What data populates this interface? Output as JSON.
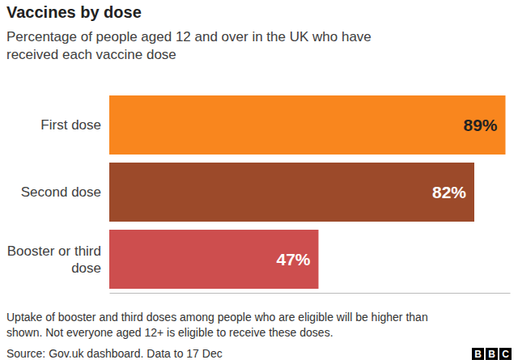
{
  "chart_data": {
    "type": "bar",
    "orientation": "horizontal",
    "title": "Vaccines by dose",
    "subtitle": [
      "Percentage of people aged 12 and over in the UK who have",
      "received each vaccine dose"
    ],
    "categories": [
      "First dose",
      "Second dose",
      "Booster or third dose"
    ],
    "values": [
      89,
      82,
      47
    ],
    "value_labels": [
      "89%",
      "82%",
      "47%"
    ],
    "colors": [
      "#f9861e",
      "#9c4a2a",
      "#cd4e4e"
    ],
    "data_labels": true,
    "xlim": [
      0,
      90
    ],
    "tick_labels": false,
    "grid": false,
    "notes": [
      "Uptake of booster and third doses among people who are eligible will be higher than",
      "shown. Not everyone aged 12+ is eligible to receive these doses."
    ],
    "source": "Source: Gov.uk dashboard. Data to 17 Dec",
    "logo": "BBC"
  }
}
